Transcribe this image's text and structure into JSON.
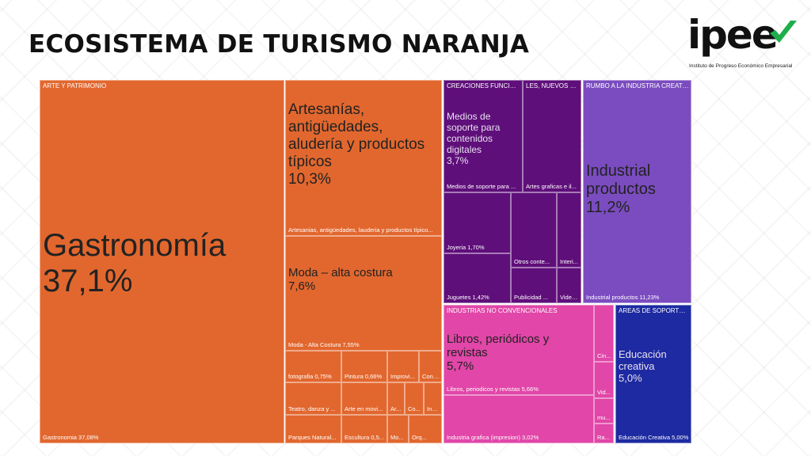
{
  "slide": {
    "title": "ECOSISTEMA DE TURISMO NARANJA"
  },
  "logo": {
    "word": "ipee",
    "subtitle": "Instituto de Progreso Económico Empresarial",
    "accent_color": "#1fae4b",
    "icon": "check-swoosh-icon"
  },
  "chart_data": {
    "type": "treemap",
    "groups": [
      "ARTE Y PATRIMONIO",
      "CREACIONES FUNCIONA...",
      "LES, NUEVOS M...",
      "RUMBO A LA INDUSTRIA CREATIVA",
      "INDUSTRIAS NO CONVENCIONALES",
      "AREAS DE SOPORTE PA..."
    ],
    "colors": {
      "arte": "#e2672e",
      "creaciones": "#5f0f7a",
      "rumbo": "#7b4cc0",
      "industrias": "#e146a8",
      "areas": "#1d2aa1",
      "big_text": "#222222",
      "light_text": "#e8e0f0"
    },
    "callouts": [
      {
        "name": "Gastronomía",
        "value": "37,1%"
      },
      {
        "name": "Artesanías, antigüedades, aludería y productos típicos",
        "value": "10,3%"
      },
      {
        "name": "Moda – alta costura",
        "value": "7,6%"
      },
      {
        "name": "Medios de soporte para contenidos digitales",
        "value": "3,7%"
      },
      {
        "name": "Industrial productos",
        "value": "11,2%"
      },
      {
        "name": "Libros, periódicos y revistas",
        "value": "5,7%"
      },
      {
        "name": "Educación creativa",
        "value": "5,0%"
      }
    ],
    "tile_labels": [
      "Gastronomia 37,08%",
      "Artesanias, antigüedades, lauderia y productos típico...",
      "Moda - Alta Costura 7,55%",
      "fotografia 0,75%",
      "Pintura 0,66%",
      "Improvi...",
      "Conc...",
      "Teatro, danza y ...",
      "Arte en movi...",
      "Ar...",
      "Co...",
      "Ins...",
      "Parques Natural...",
      "Escultura 0,5...",
      "Mo...",
      "Orq...",
      "Medios de soporte para ...",
      "Artes graficas e il...",
      "Joyeria 1,70%",
      "Otros conte...",
      "Interi...",
      "Juguetes 1,42%",
      "Publicidad ...",
      "Video ...",
      "Industrial productos 11,23%",
      "Libros, periodicos y revistas 5,66%",
      "Industria grafica (impresion) 3,02%",
      "Cin...",
      "Vid...",
      "mu...",
      "Ra...",
      "Educación Creativa 5,00%"
    ]
  }
}
